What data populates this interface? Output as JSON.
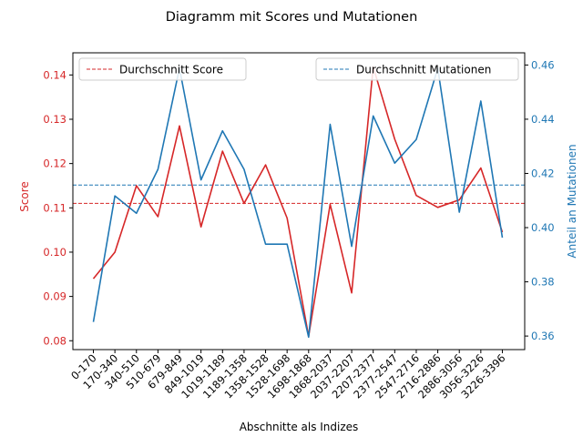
{
  "chart_data": {
    "type": "line",
    "title": "Diagramm mit Scores und Mutationen",
    "xlabel": "Abschnitte als Indizes",
    "ylabel_left": "Score",
    "ylabel_right": "Anteil an Mutationen",
    "categories": [
      "0-170",
      "170-340",
      "340-510",
      "510-679",
      "679-849",
      "849-1019",
      "1019-1189",
      "1189-1358",
      "1358-1528",
      "1528-1698",
      "1698-1868",
      "1868-2037",
      "2037-2207",
      "2207-2377",
      "2377-2547",
      "2547-2716",
      "2716-2886",
      "2886-3056",
      "3056-3226",
      "3226-3396"
    ],
    "y_left_range": [
      0.078,
      0.145
    ],
    "y_left_ticks": [
      "0.08",
      "0.09",
      "0.10",
      "0.11",
      "0.12",
      "0.13",
      "0.14"
    ],
    "y_right_range": [
      0.355,
      0.4645
    ],
    "y_right_ticks": [
      "0.36",
      "0.38",
      "0.40",
      "0.42",
      "0.44",
      "0.46"
    ],
    "grid": false,
    "series": [
      {
        "axis": "left",
        "color": "#d62728",
        "values": [
          0.094,
          0.1,
          0.115,
          0.108,
          0.1285,
          0.1057,
          0.1228,
          0.111,
          0.1197,
          0.1077,
          0.081,
          0.1108,
          0.0908,
          0.1418,
          0.1255,
          0.1128,
          0.1101,
          0.1118,
          0.119,
          0.1045
        ]
      },
      {
        "axis": "right",
        "color": "#1f77b4",
        "values": [
          0.3652,
          0.4117,
          0.4053,
          0.4215,
          0.4588,
          0.4176,
          0.4357,
          0.4215,
          0.3939,
          0.3939,
          0.3596,
          0.4381,
          0.3931,
          0.4412,
          0.4238,
          0.4325,
          0.4588,
          0.4057,
          0.4467,
          0.3963
        ]
      }
    ],
    "reference_lines": [
      {
        "axis": "left",
        "value": 0.111,
        "color": "#d62728",
        "style": "dashed",
        "label": "Durchschnitt Score"
      },
      {
        "axis": "right",
        "value": 0.4157,
        "color": "#1f77b4",
        "style": "dashed",
        "label": "Durchschnitt Mutationen"
      }
    ],
    "legends": [
      {
        "placement": "upper left",
        "entries": [
          "Durchschnitt Score"
        ]
      },
      {
        "placement": "upper right",
        "entries": [
          "Durchschnitt Mutationen"
        ]
      }
    ]
  }
}
